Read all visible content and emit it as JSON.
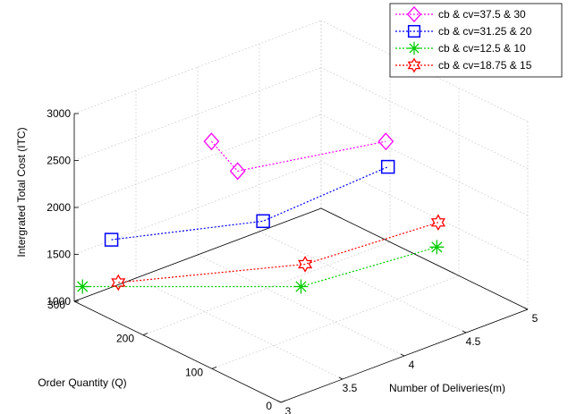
{
  "chart_data": {
    "type": "scatter3d",
    "title": "",
    "xlabel": "Number of Deliveries(m)",
    "ylabel": "Order Quantity (Q)",
    "zlabel": "Intergrated Total Cost (ITC)",
    "xlim": [
      3,
      5
    ],
    "ylim": [
      0,
      300
    ],
    "zlim": [
      1000,
      3000
    ],
    "x_ticks": [
      "3",
      "3.5",
      "4",
      "4.5",
      "5"
    ],
    "y_ticks": [
      "0",
      "100",
      "200",
      "300"
    ],
    "z_ticks": [
      "1000",
      "1500",
      "2000",
      "2500",
      "3000"
    ],
    "grid": true,
    "legend_position": "top-right",
    "series": [
      {
        "name": "cb & cv=37.5 & 30",
        "color": "#ff00ff",
        "marker": "diamond-icon",
        "points": [
          {
            "x": 4,
            "y": 280,
            "z": 2280
          },
          {
            "x": 4,
            "y": 242,
            "z": 2100
          },
          {
            "x": 5,
            "y": 206,
            "z": 2050
          }
        ]
      },
      {
        "name": "cb & cv=31.25 & 20",
        "color": "#0000ff",
        "marker": "square-icon",
        "points": [
          {
            "x": 3,
            "y": 246,
            "z": 1850
          },
          {
            "x": 4,
            "y": 205,
            "z": 1700
          },
          {
            "x": 5,
            "y": 203,
            "z": 1790
          }
        ]
      },
      {
        "name": "cb & cv=12.5 & 10",
        "color": "#00cc00",
        "marker": "asterisk-icon",
        "points": [
          {
            "x": 3,
            "y": 288,
            "z": 1200
          },
          {
            "x": 4,
            "y": 150,
            "z": 1200
          },
          {
            "x": 5,
            "y": 132,
            "z": 1190
          }
        ]
      },
      {
        "name": "cb & cv=18.75 & 15",
        "color": "#ff0000",
        "marker": "hexagram-icon",
        "points": [
          {
            "x": 3,
            "y": 236,
            "z": 1430
          },
          {
            "x": 4,
            "y": 144,
            "z": 1460
          },
          {
            "x": 5,
            "y": 130,
            "z": 1460
          }
        ]
      }
    ]
  }
}
